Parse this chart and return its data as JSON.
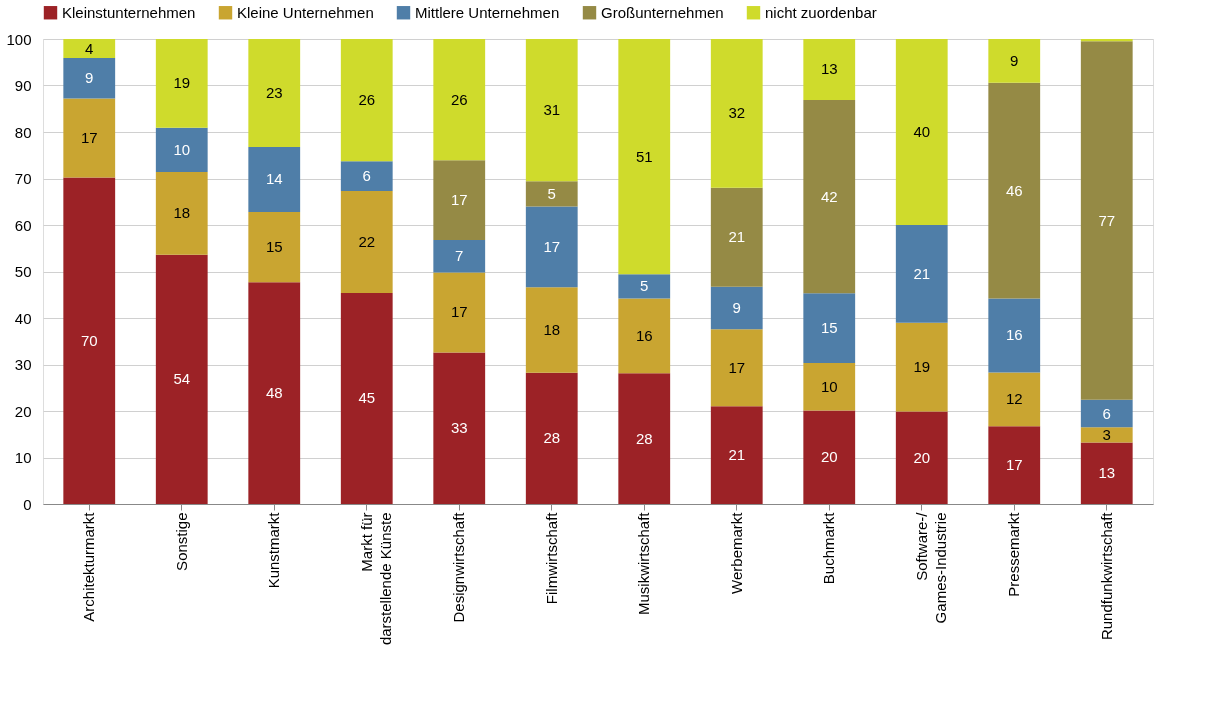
{
  "chart_data": {
    "type": "bar",
    "stacked": true,
    "categories": [
      "Architekturmarkt",
      "Sonstige",
      "Kunstmarkt",
      "Markt für\ndarstellende Künste",
      "Designwirtschaft",
      "Filmwirtschaft",
      "Musikwirtschaft",
      "Werbemarkt",
      "Buchmarkt",
      "Software-/\nGames-Industrie",
      "Pressemarkt",
      "Rundfunkwirtschaft"
    ],
    "series": [
      {
        "name": "Kleinstunternehmen",
        "color": "#9c2226",
        "values": [
          70.2,
          53.6,
          47.7,
          45.4,
          32.6,
          28.2,
          28.1,
          21.0,
          20.1,
          19.9,
          16.7,
          13.2
        ],
        "value_labels": [
          "70",
          "54",
          "48",
          "45",
          "33",
          "28",
          "28",
          "21",
          "20",
          "20",
          "17",
          "13"
        ]
      },
      {
        "name": "Kleine Unternehmen",
        "color": "#c9a531",
        "values": [
          17.0,
          17.8,
          15.1,
          21.9,
          17.2,
          18.4,
          16.1,
          16.6,
          10.2,
          19.1,
          11.6,
          3.3
        ],
        "value_labels": [
          "17",
          "18",
          "15",
          "22",
          "17",
          "18",
          "16",
          "17",
          "10",
          "19",
          "12",
          "3"
        ]
      },
      {
        "name": "Mittlere Unternehmen",
        "color": "#4f7ea8",
        "values": [
          8.7,
          9.5,
          14.0,
          6.4,
          7.0,
          17.4,
          5.2,
          9.1,
          15.0,
          21.0,
          15.9,
          5.9
        ],
        "value_labels": [
          "9",
          "10",
          "14",
          "6",
          "7",
          "17",
          "5",
          "9",
          "15",
          "21",
          "16",
          "6"
        ]
      },
      {
        "name": "Großunternehmen",
        "color": "#958a45",
        "values": [
          0,
          0,
          0,
          0,
          17.1,
          5.4,
          0,
          21.3,
          41.6,
          0,
          46.4,
          77.1
        ],
        "value_labels": [
          null,
          null,
          null,
          null,
          "17",
          "5",
          null,
          "21",
          "42",
          null,
          "46",
          "77"
        ]
      },
      {
        "name": "nicht zuordenbar",
        "color": "#cfdb2c",
        "values": [
          4.1,
          19.1,
          23.2,
          26.3,
          26.1,
          30.6,
          50.6,
          32.0,
          13.1,
          40.0,
          9.4,
          0.5
        ],
        "value_labels": [
          "4",
          "19",
          "23",
          "26",
          "26",
          "31",
          "51",
          "32",
          "13",
          "40",
          "9",
          null
        ]
      }
    ],
    "ylim": [
      0,
      100
    ],
    "yticks": [
      0,
      10,
      20,
      30,
      40,
      50,
      60,
      70,
      80,
      90,
      100
    ],
    "grid": "y",
    "legend": "top"
  }
}
